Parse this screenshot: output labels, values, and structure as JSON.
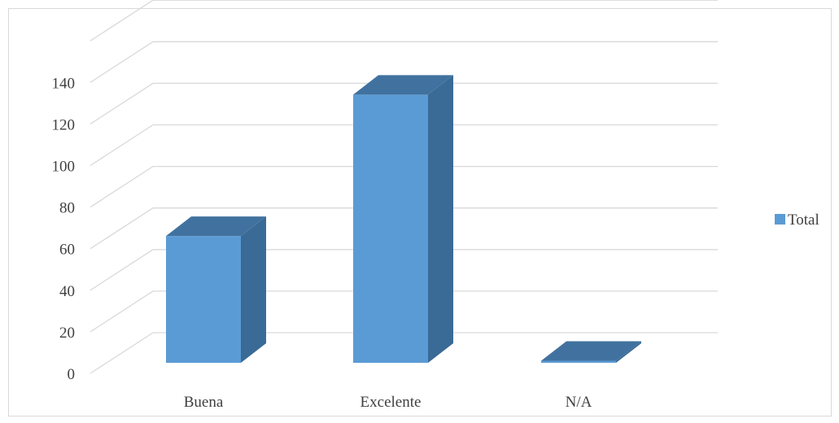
{
  "chart_data": {
    "type": "bar",
    "three_d": true,
    "categories": [
      "Buena",
      "Excelente",
      "N/A"
    ],
    "series": [
      {
        "name": "Total",
        "values": [
          61,
          129,
          1
        ]
      }
    ],
    "ylim": [
      0,
      160
    ],
    "yticks": [
      0,
      20,
      40,
      60,
      80,
      100,
      120,
      140
    ],
    "grid": true,
    "legend": {
      "position": "right"
    },
    "colors": {
      "front": "#5b9bd5",
      "side": "#3a6a96",
      "top": "#41729f",
      "grid": "#d9d9d9",
      "text": "#404040"
    }
  }
}
